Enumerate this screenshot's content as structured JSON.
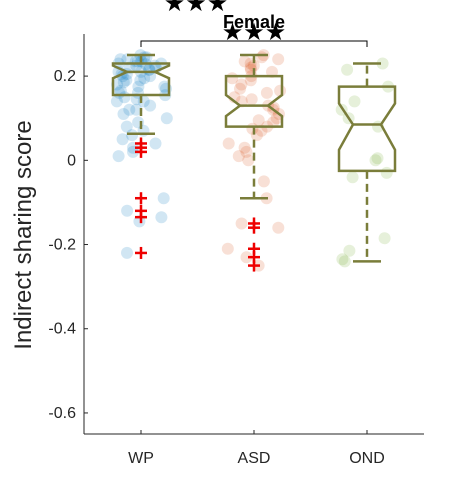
{
  "chart_data": {
    "type": "box",
    "title": "Female",
    "xlabel": "",
    "ylabel": "Indirect sharing score",
    "ylim": [
      -0.65,
      0.3
    ],
    "yticks": [
      -0.6,
      -0.4,
      -0.2,
      0,
      0.2
    ],
    "ytick_labels": [
      "-0.6",
      "-0.4",
      "-0.2",
      "0",
      "0.2"
    ],
    "categories": [
      "WP",
      "ASD",
      "OND"
    ],
    "colors": {
      "box": "#7a7d3a",
      "outlier": "#ee0000",
      "WP": "#0072bd",
      "ASD": "#d95319",
      "OND": "#77ac30",
      "axis": "#262626"
    },
    "groups": [
      {
        "name": "WP",
        "q1": 0.155,
        "median": 0.21,
        "q3": 0.23,
        "whisker_low": 0.063,
        "whisker_high": 0.25,
        "notch_low": 0.195,
        "notch_high": 0.225,
        "outliers": [
          0.04,
          0.03,
          0.02,
          -0.09,
          -0.12,
          -0.135,
          -0.22
        ],
        "points": [
          0.25,
          0.245,
          0.24,
          0.24,
          0.235,
          0.235,
          0.23,
          0.23,
          0.228,
          0.225,
          0.22,
          0.22,
          0.215,
          0.21,
          0.21,
          0.205,
          0.2,
          0.2,
          0.195,
          0.19,
          0.185,
          0.18,
          0.175,
          0.17,
          0.165,
          0.16,
          0.155,
          0.15,
          0.145,
          0.14,
          0.13,
          0.12,
          0.11,
          0.1,
          0.09,
          0.08,
          0.07,
          0.06,
          0.05,
          0.04,
          0.03,
          0.02,
          0.01,
          -0.09,
          -0.12,
          -0.135,
          -0.145,
          -0.22,
          0.245,
          0.235,
          0.225,
          0.215,
          0.205,
          0.19,
          0.175,
          0.16,
          0.14,
          0.12
        ]
      },
      {
        "name": "ASD",
        "q1": 0.08,
        "median": 0.13,
        "q3": 0.2,
        "whisker_low": -0.09,
        "whisker_high": 0.25,
        "notch_low": 0.105,
        "notch_high": 0.155,
        "outliers": [
          -0.15,
          -0.16,
          -0.21,
          -0.23,
          -0.25
        ],
        "points": [
          0.25,
          0.245,
          0.24,
          0.235,
          0.23,
          0.225,
          0.22,
          0.21,
          0.2,
          0.19,
          0.18,
          0.17,
          0.16,
          0.15,
          0.14,
          0.13,
          0.12,
          0.11,
          0.1,
          0.09,
          0.08,
          0.07,
          0.06,
          0.04,
          0.03,
          0.02,
          0.01,
          0.0,
          -0.05,
          -0.09,
          -0.15,
          -0.16,
          -0.21,
          -0.23,
          -0.25,
          0.215,
          0.195,
          0.165,
          0.145,
          0.125,
          0.095,
          0.075
        ]
      },
      {
        "name": "OND",
        "q1": -0.025,
        "median": 0.085,
        "q3": 0.175,
        "whisker_low": -0.24,
        "whisker_high": 0.23,
        "notch_low": 0.025,
        "notch_high": 0.135,
        "outliers": [],
        "points": [
          0.215,
          0.23,
          0.175,
          0.14,
          0.12,
          0.1,
          0.08,
          0.005,
          0.0,
          -0.03,
          -0.04,
          -0.185,
          -0.215,
          -0.235,
          -0.24
        ]
      }
    ],
    "significance": [
      {
        "from": "WP",
        "to": "OND",
        "label": "★★★"
      },
      {
        "from": "ASD",
        "to": "OND",
        "label": "★★★"
      }
    ]
  }
}
